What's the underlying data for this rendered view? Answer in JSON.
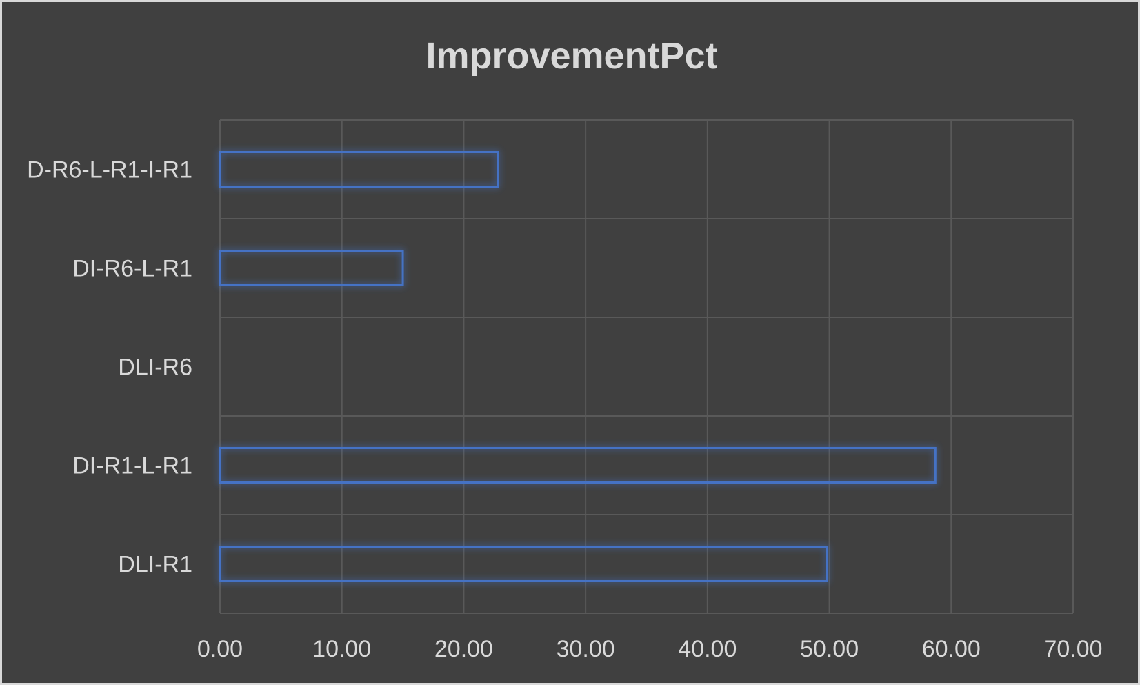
{
  "chart_data": {
    "type": "bar",
    "orientation": "horizontal",
    "title": "ImprovementPct",
    "categories": [
      "D-R6-L-R1-I-R1",
      "DI-R6-L-R1",
      "DLI-R6",
      "DI-R1-L-R1",
      "DLI-R1"
    ],
    "values": [
      22.8,
      15.0,
      0,
      58.7,
      49.8
    ],
    "xlim": [
      0,
      70
    ],
    "xticks": [
      "0.00",
      "10.00",
      "20.00",
      "30.00",
      "40.00",
      "50.00",
      "60.00",
      "70.00"
    ],
    "grid": true,
    "colors": {
      "background": "#404040",
      "bar_outline": "#4472c4",
      "grid": "#595959",
      "text": "#d9d9d9"
    }
  }
}
